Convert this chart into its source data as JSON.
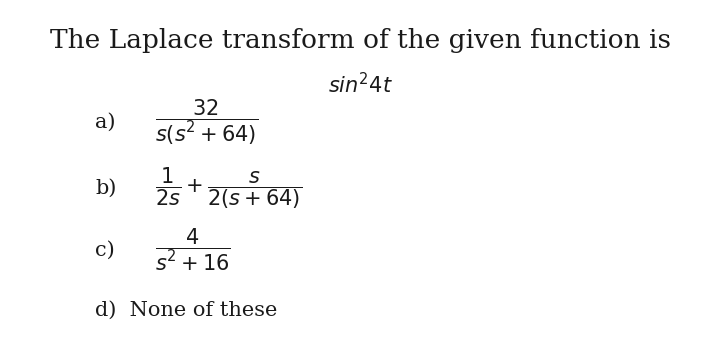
{
  "title": "The Laplace transform of the given function is",
  "function": "$sin^{2}4t$",
  "option_a_label": "a)",
  "option_a_expr": "$\\dfrac{32}{s(s^{2}+64)}$",
  "option_b_label": "b)",
  "option_b_expr": "$\\dfrac{1}{2s}+\\dfrac{s}{2(s+64)}$",
  "option_c_label": "c)",
  "option_c_expr": "$\\dfrac{4}{s^{2}+16}$",
  "option_d_label": "d)  None of these",
  "bg_color": "#ffffff",
  "text_color": "#1a1a1a",
  "title_fontsize": 19,
  "func_fontsize": 15,
  "option_label_fontsize": 15,
  "option_expr_fontsize": 15
}
